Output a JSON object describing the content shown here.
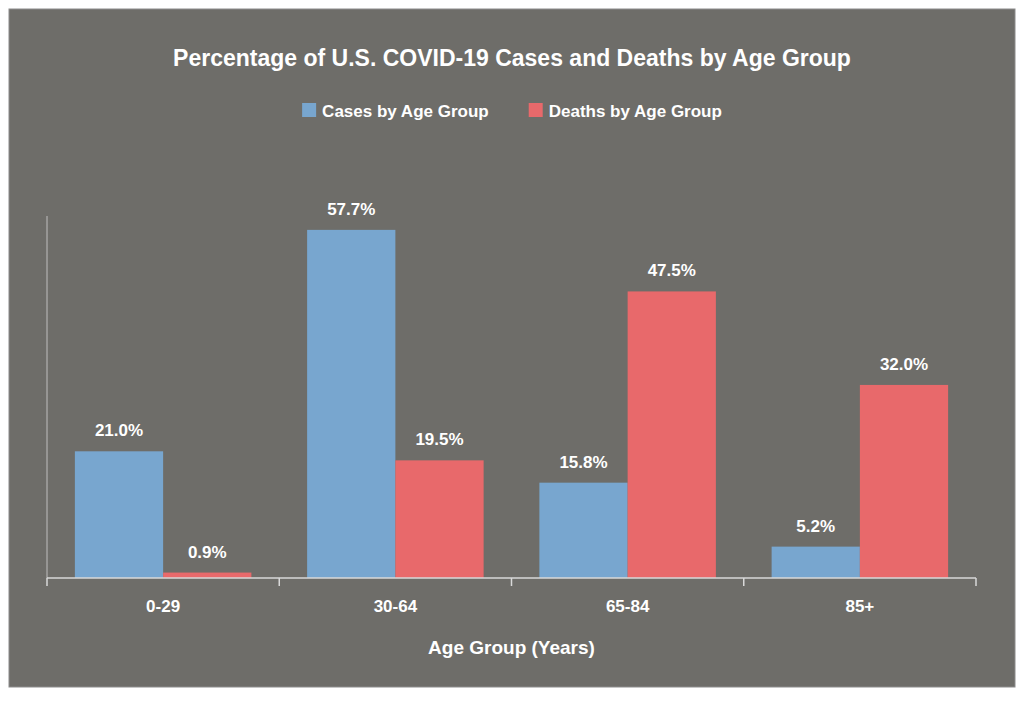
{
  "chart_data": {
    "type": "bar",
    "title": "Percentage of U.S. COVID-19 Cases and Deaths by Age Group",
    "x_label": "Age Group (Years)",
    "categories": [
      "0-29",
      "30-64",
      "65-84",
      "85+"
    ],
    "series": [
      {
        "name": "Cases by Age Group",
        "color": "#78a6cf",
        "values": [
          21.0,
          57.7,
          15.8,
          5.2
        ],
        "value_labels": [
          "21.0%",
          "57.7%",
          "15.8%",
          "5.2%"
        ]
      },
      {
        "name": "Deaths by Age Group",
        "color": "#e8696b",
        "values": [
          0.9,
          19.5,
          47.5,
          32.0
        ],
        "value_labels": [
          "0.9%",
          "19.5%",
          "47.5%",
          "32.0%"
        ]
      }
    ],
    "ylim": [
      0,
      60
    ],
    "tick_labels": "x",
    "data_labels": true,
    "legend": "top",
    "grid": false
  }
}
